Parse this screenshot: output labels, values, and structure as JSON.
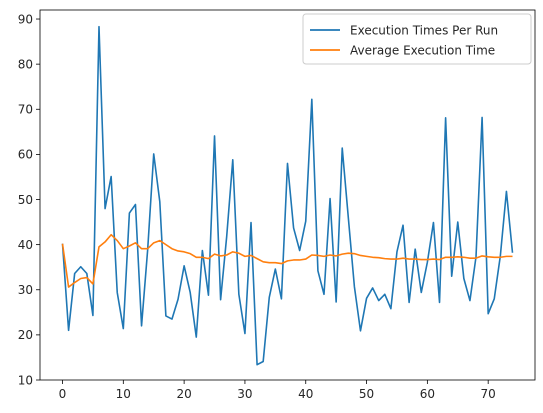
{
  "chart_data": {
    "type": "line",
    "title": "",
    "xlabel": "",
    "ylabel": "",
    "xlim": [
      -3.7,
      77.7
    ],
    "ylim": [
      10,
      92
    ],
    "x_ticks": [
      0,
      10,
      20,
      30,
      40,
      50,
      60,
      70
    ],
    "y_ticks": [
      10,
      20,
      30,
      40,
      50,
      60,
      70,
      80,
      90
    ],
    "grid": false,
    "legend_position": "top-right",
    "series": [
      {
        "name": "Execution Times Per Run",
        "color": "#1f77b4",
        "values": [
          40.2,
          21.0,
          33.6,
          35.1,
          33.6,
          24.3,
          88.3,
          48.0,
          55.1,
          29.4,
          21.4,
          47.0,
          48.9,
          22.0,
          38.8,
          60.1,
          49.5,
          24.2,
          23.5,
          27.9,
          35.3,
          29.4,
          19.5,
          38.7,
          28.8,
          64.1,
          27.8,
          41.8,
          58.8,
          29.0,
          20.3,
          44.9,
          13.4,
          14.1,
          28.3,
          34.6,
          28.0,
          58.0,
          43.7,
          38.7,
          45.2,
          72.2,
          34.2,
          29.0,
          50.2,
          27.3,
          61.4,
          46.0,
          30.7,
          20.9,
          28.1,
          30.4,
          27.6,
          29.0,
          25.8,
          38.4,
          44.3,
          27.2,
          39.0,
          29.4,
          36.1,
          44.9,
          27.2,
          68.1,
          33.0,
          45.0,
          32.5,
          27.6,
          37.3,
          68.2,
          24.7,
          28.0,
          37.5,
          51.8,
          38.2
        ]
      },
      {
        "name": "Average Execution Time",
        "color": "#ff7f0e",
        "values": [
          40.2,
          30.6,
          31.6,
          32.5,
          32.7,
          31.3,
          39.5,
          40.6,
          42.2,
          40.9,
          39.1,
          39.7,
          40.4,
          39.1,
          39.1,
          40.4,
          40.9,
          40.0,
          39.1,
          38.6,
          38.4,
          38.0,
          37.2,
          37.2,
          36.9,
          37.9,
          37.5,
          37.7,
          38.4,
          38.1,
          37.4,
          37.6,
          36.9,
          36.2,
          36.0,
          36.0,
          35.8,
          36.4,
          36.6,
          36.6,
          36.8,
          37.7,
          37.6,
          37.4,
          37.7,
          37.5,
          37.9,
          38.1,
          38.0,
          37.6,
          37.4,
          37.2,
          37.1,
          36.9,
          36.8,
          36.8,
          37.0,
          36.8,
          36.8,
          36.7,
          36.7,
          36.8,
          36.7,
          37.2,
          37.2,
          37.3,
          37.2,
          37.0,
          37.0,
          37.5,
          37.3,
          37.2,
          37.2,
          37.4,
          37.4
        ]
      }
    ]
  }
}
